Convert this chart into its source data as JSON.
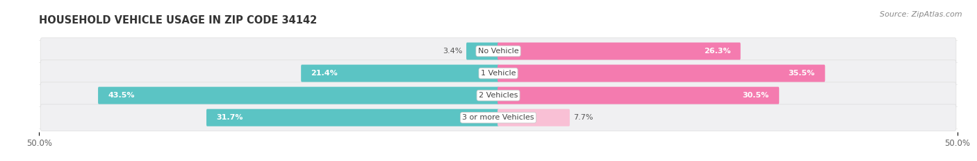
{
  "title": "HOUSEHOLD VEHICLE USAGE IN ZIP CODE 34142",
  "source": "Source: ZipAtlas.com",
  "categories": [
    "No Vehicle",
    "1 Vehicle",
    "2 Vehicles",
    "3 or more Vehicles"
  ],
  "owner_values": [
    3.4,
    21.4,
    43.5,
    31.7
  ],
  "renter_values": [
    26.3,
    35.5,
    30.5,
    7.7
  ],
  "owner_color": "#5BC4C4",
  "renter_color": "#F47BAF",
  "renter_faint_color": "#F9C0D5",
  "row_bg_color": "#F0F0F2",
  "xlim": 50.0,
  "title_fontsize": 10.5,
  "source_fontsize": 8,
  "label_fontsize": 8,
  "category_fontsize": 8,
  "tick_fontsize": 8.5,
  "legend_fontsize": 8.5,
  "figsize": [
    14.06,
    2.33
  ],
  "dpi": 100
}
